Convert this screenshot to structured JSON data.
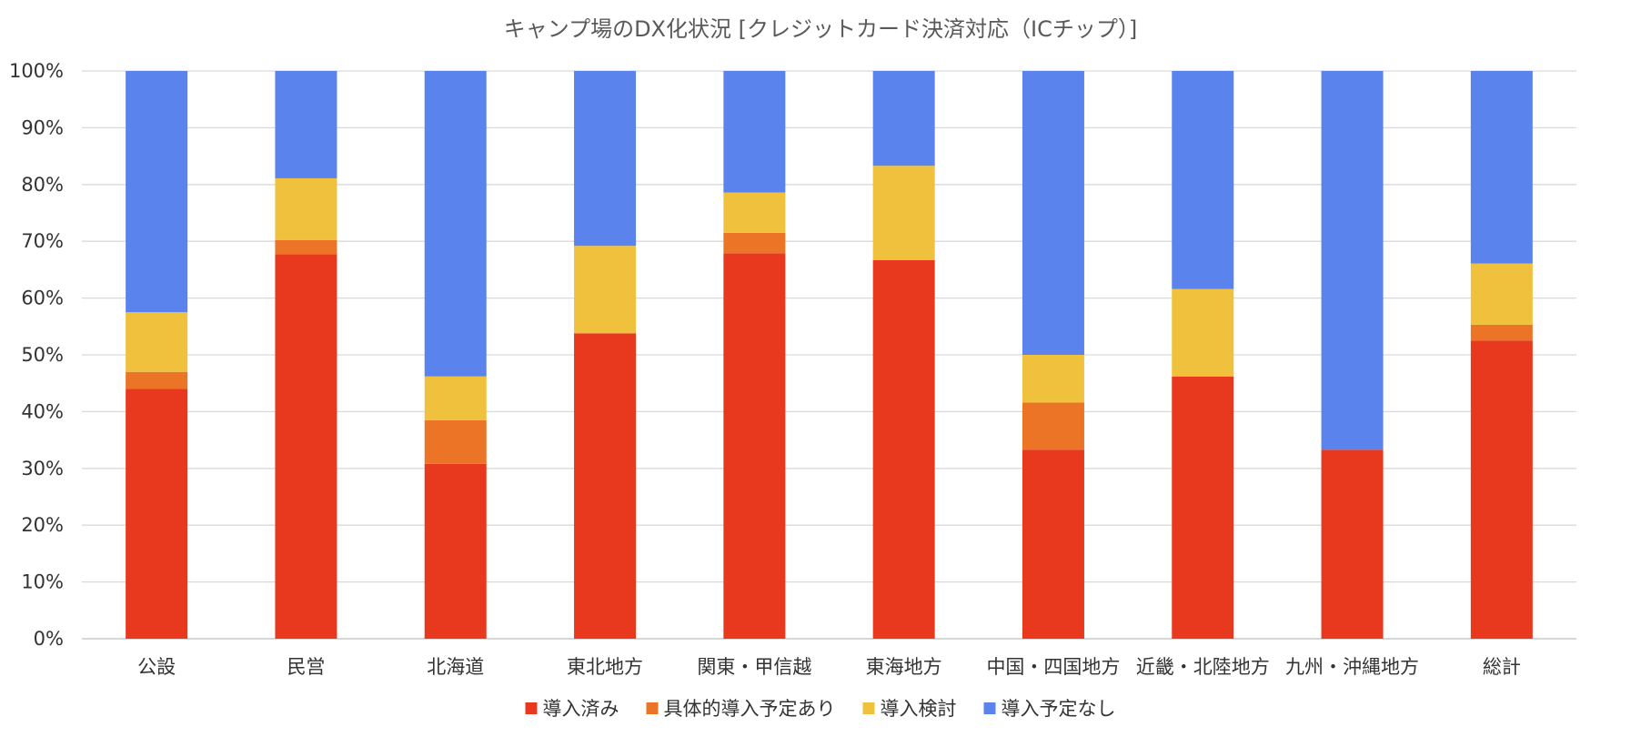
{
  "chart_data": {
    "type": "bar",
    "stacked": true,
    "percent": true,
    "title": "キャンプ場のDX化状況 [クレジットカード決済対応（ICチップ）]",
    "xlabel": "",
    "ylabel": "",
    "ylim": [
      0,
      100
    ],
    "yticks": [
      "0%",
      "10%",
      "20%",
      "30%",
      "40%",
      "50%",
      "60%",
      "70%",
      "80%",
      "90%",
      "100%"
    ],
    "grid": true,
    "legend_position": "bottom",
    "categories": [
      "公設",
      "民営",
      "北海道",
      "東北地方",
      "関東・甲信越",
      "東海地方",
      "中国・四国地方",
      "近畿・北陸地方",
      "九州・沖縄地方",
      "総計"
    ],
    "series": [
      {
        "name": "導入済み",
        "color": "#E8381E",
        "values": [
          44.0,
          67.7,
          30.8,
          53.8,
          67.9,
          66.7,
          33.3,
          46.2,
          33.3,
          52.5
        ]
      },
      {
        "name": "具体的導入予定あり",
        "color": "#EC7427",
        "values": [
          3.0,
          2.5,
          7.7,
          0.0,
          3.6,
          0.0,
          8.3,
          0.0,
          0.0,
          2.8
        ]
      },
      {
        "name": "導入検討",
        "color": "#F0C13D",
        "values": [
          10.5,
          10.9,
          7.7,
          15.4,
          7.1,
          16.6,
          8.4,
          15.4,
          0.0,
          10.8
        ]
      },
      {
        "name": "導入予定なし",
        "color": "#5A83EE",
        "values": [
          42.5,
          18.9,
          53.8,
          30.8,
          21.4,
          16.7,
          50.0,
          38.4,
          66.7,
          33.9
        ]
      }
    ]
  }
}
